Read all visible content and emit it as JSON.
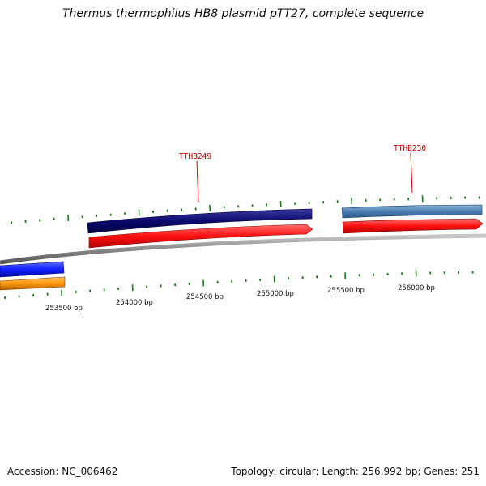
{
  "title": "Thermus thermophilus HB8 plasmid pTT27, complete sequence",
  "footer": {
    "accession": "Accession: NC_006462",
    "summary": "Topology: circular; Length: 256,992 bp; Genes: 251"
  },
  "scale": {
    "labels": [
      "253500 bp",
      "254000 bp",
      "254500 bp",
      "255000 bp",
      "255500 bp",
      "256000 bp"
    ]
  },
  "genes": [
    {
      "name": "TTHB249",
      "color": "#0a0a6e"
    },
    {
      "name": "TTHB250",
      "color": "#4a7fb5"
    }
  ],
  "colors": {
    "backbone": "#8a8a8a",
    "cds": "#ff1010",
    "gene_blue": "#1020ff",
    "gene_orange": "#ff9a10",
    "tick": "#1a7a1a"
  }
}
